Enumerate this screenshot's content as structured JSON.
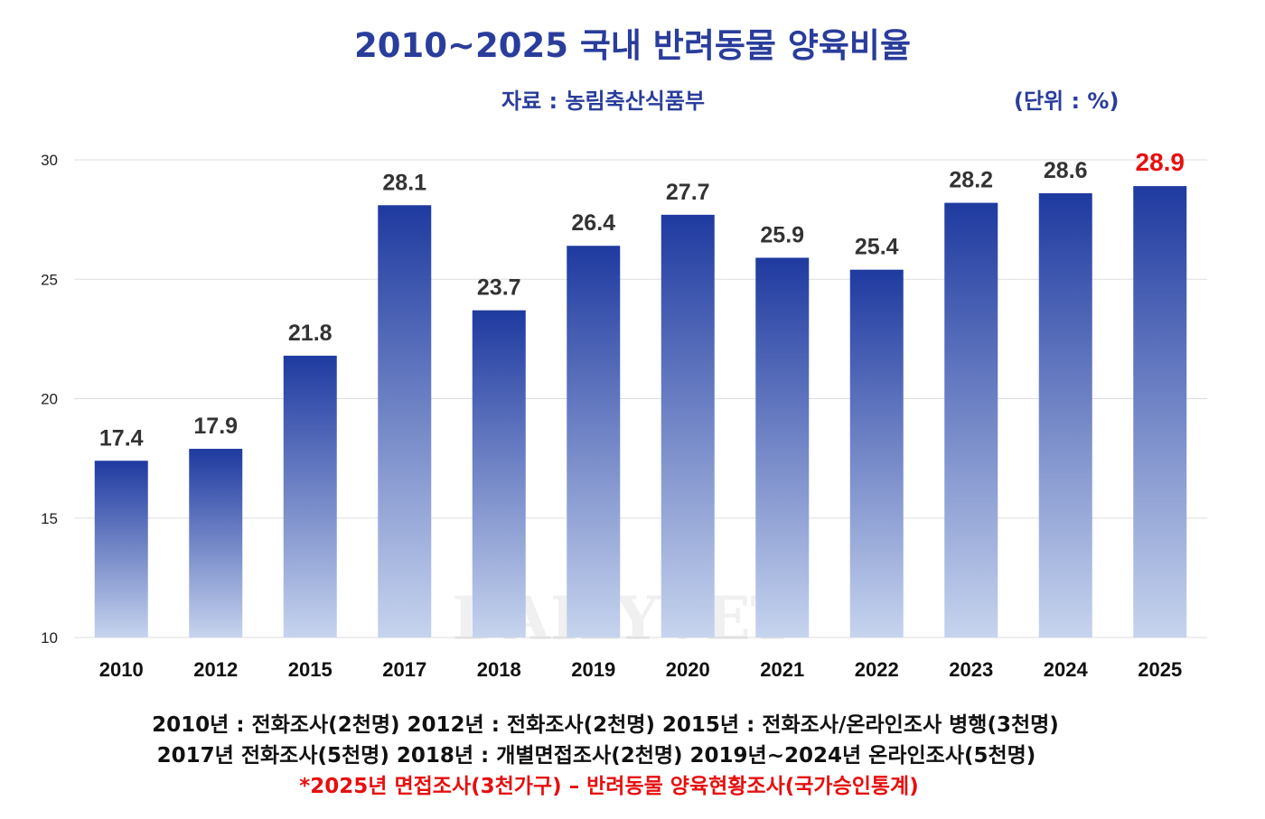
{
  "chart_data": {
    "type": "bar",
    "title": "2010~2025 국내 반려동물 양육비율",
    "subtitle": "자료 : 농림축산식품부",
    "unit_label": "(단위 : %)",
    "categories": [
      "2010",
      "2012",
      "2015",
      "2017",
      "2018",
      "2019",
      "2020",
      "2021",
      "2022",
      "2023",
      "2024",
      "2025"
    ],
    "values": [
      17.4,
      17.9,
      21.8,
      28.1,
      23.7,
      26.4,
      27.7,
      25.9,
      25.4,
      28.2,
      28.6,
      28.9
    ],
    "value_labels": [
      "17.4",
      "17.9",
      "21.8",
      "28.1",
      "23.7",
      "26.4",
      "27.7",
      "25.9",
      "25.4",
      "28.2",
      "28.6",
      "28.9"
    ],
    "highlight_index": 11,
    "ylim": [
      10,
      30
    ],
    "yticks": [
      "10",
      "15",
      "20",
      "25",
      "30"
    ],
    "ytick_values": [
      10,
      15,
      20,
      25,
      30
    ],
    "grid": true,
    "xlabel": "",
    "ylabel": ""
  },
  "colors": {
    "title": "#2a3d9b",
    "bar_top": "#1f3aa0",
    "bar_bottom": "#c7d4ee",
    "label": "#333333",
    "highlight": "#e60f0f",
    "grid": "#dddddd"
  },
  "watermark": "DAILYVET",
  "notes": {
    "line1": "2010년 : 전화조사(2천명)  2012년 : 전화조사(2천명)  2015년 : 전화조사/온라인조사 병행(3천명)",
    "line2": "2017년 전화조사(5천명) 2018년 : 개별면접조사(2천명)  2019년~2024년 온라인조사(5천명)",
    "line3": "*2025년 면접조사(3천가구) – 반려동물 양육현황조사(국가승인통계)"
  }
}
